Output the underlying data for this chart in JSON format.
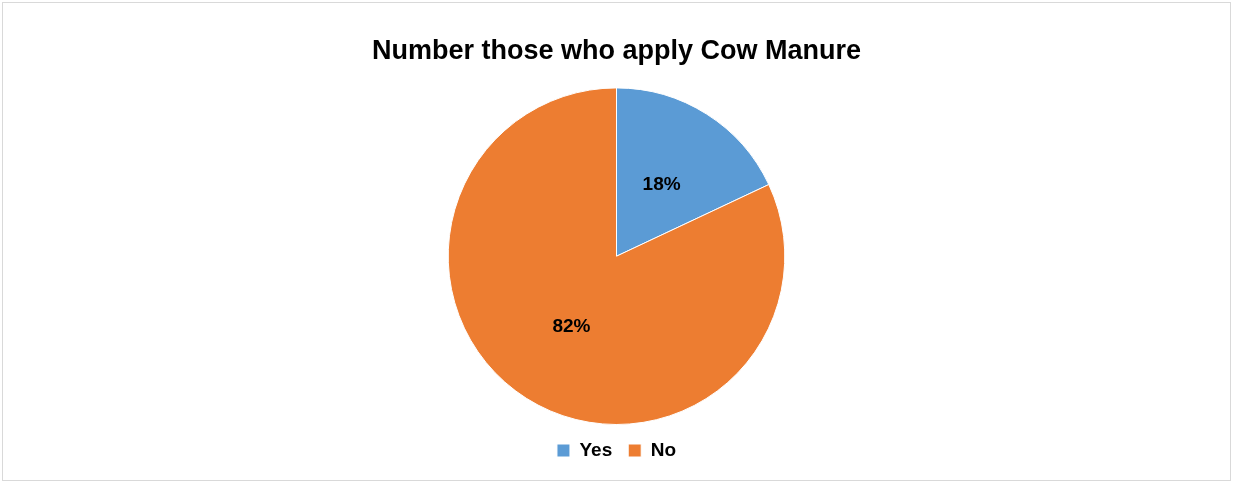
{
  "chart_data": {
    "type": "pie",
    "title": "Number those who apply Cow Manure",
    "categories": [
      "Yes",
      "No"
    ],
    "values": [
      18,
      82
    ],
    "colors": [
      "#5b9bd5",
      "#ed7d31"
    ],
    "value_labels": [
      "18%",
      "82%"
    ],
    "legend": "bottom"
  }
}
